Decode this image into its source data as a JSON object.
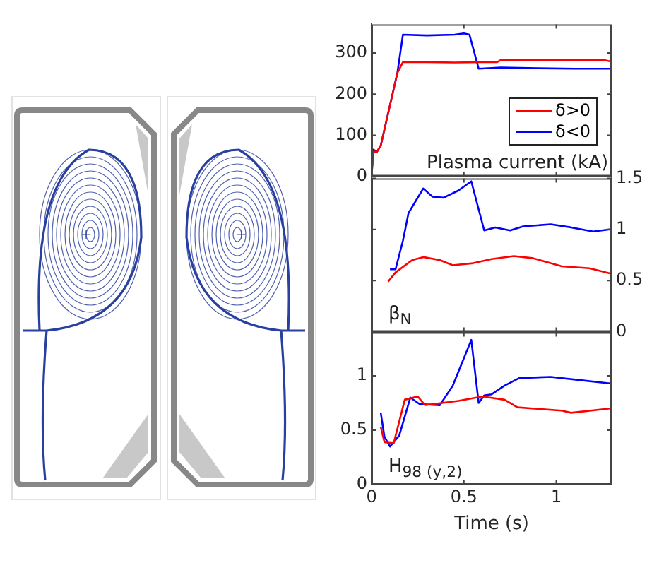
{
  "chart_data": [
    {
      "type": "line",
      "annotations": [
        "Plasma current (kA)"
      ],
      "xlim": [
        0,
        1.3
      ],
      "xticks": [
        0,
        0.5,
        1
      ],
      "ylim": [
        0,
        370
      ],
      "yticks": [
        0,
        100,
        200,
        300
      ],
      "legend": "bottom right",
      "tick_labels": "y",
      "series": [
        {
          "name": "δ>0",
          "color": "#ff0000",
          "x": [
            0,
            0.01,
            0.03,
            0.05,
            0.14,
            0.17,
            0.3,
            0.45,
            0.6,
            0.68,
            0.7,
            0.9,
            1.1,
            1.25,
            1.29
          ],
          "values": [
            0,
            60,
            60,
            75,
            252,
            278,
            278,
            277,
            278,
            278,
            283,
            283,
            283,
            284,
            280
          ]
        },
        {
          "name": "δ<0",
          "color": "#0000ff",
          "x": [
            0,
            0.01,
            0.03,
            0.05,
            0.14,
            0.17,
            0.3,
            0.45,
            0.5,
            0.53,
            0.58,
            0.7,
            0.9,
            1.1,
            1.29
          ],
          "values": [
            0,
            65,
            60,
            75,
            252,
            345,
            343,
            345,
            348,
            345,
            262,
            265,
            263,
            262,
            262
          ]
        }
      ]
    },
    {
      "type": "line",
      "annotations": [
        "β$_{N}$"
      ],
      "xlim": [
        0,
        1.3
      ],
      "xticks": [
        0,
        0.5,
        1
      ],
      "y2lim": [
        0,
        1.5
      ],
      "y2ticks": [
        0,
        0.5,
        1,
        1.5
      ],
      "tick_labels": "y",
      "series": [
        {
          "color": "#ff0000",
          "axis": "y2",
          "x": [
            0.09,
            0.13,
            0.22,
            0.28,
            0.37,
            0.44,
            0.55,
            0.65,
            0.77,
            0.87,
            1.03,
            1.18,
            1.29
          ],
          "values": [
            0.49,
            0.58,
            0.7,
            0.73,
            0.7,
            0.65,
            0.67,
            0.71,
            0.74,
            0.72,
            0.64,
            0.62,
            0.57
          ]
        },
        {
          "color": "#0000ff",
          "axis": "y2",
          "x": [
            0.1,
            0.13,
            0.17,
            0.2,
            0.24,
            0.28,
            0.33,
            0.39,
            0.47,
            0.54,
            0.61,
            0.67,
            0.75,
            0.82,
            0.97,
            1.08,
            1.2,
            1.29
          ],
          "values": [
            0.61,
            0.61,
            0.89,
            1.16,
            1.28,
            1.4,
            1.32,
            1.31,
            1.38,
            1.47,
            0.99,
            1.02,
            0.99,
            1.03,
            1.05,
            1.02,
            0.98,
            1.0
          ]
        }
      ]
    },
    {
      "type": "line",
      "annotations": [
        "H$_{98 (y,2)}$"
      ],
      "xlabel": "Time (s)",
      "xlim": [
        0,
        1.3
      ],
      "xticks": [
        0,
        0.5,
        1
      ],
      "ylim": [
        0,
        1.4
      ],
      "yticks": [
        0,
        0.5,
        1
      ],
      "series": [
        {
          "color": "#ff0000",
          "x": [
            0.05,
            0.07,
            0.12,
            0.18,
            0.25,
            0.29,
            0.47,
            0.6,
            0.72,
            0.79,
            1.03,
            1.08,
            1.29
          ],
          "values": [
            0.53,
            0.39,
            0.38,
            0.78,
            0.81,
            0.73,
            0.77,
            0.81,
            0.78,
            0.71,
            0.68,
            0.66,
            0.7
          ]
        },
        {
          "color": "#0000ff",
          "x": [
            0.05,
            0.07,
            0.1,
            0.15,
            0.21,
            0.26,
            0.37,
            0.44,
            0.54,
            0.58,
            0.61,
            0.65,
            0.72,
            0.8,
            0.97,
            1.13,
            1.29
          ],
          "values": [
            0.66,
            0.44,
            0.35,
            0.45,
            0.8,
            0.74,
            0.73,
            0.91,
            1.33,
            0.75,
            0.82,
            0.83,
            0.91,
            0.98,
            0.99,
            0.96,
            0.93
          ]
        }
      ]
    }
  ]
}
